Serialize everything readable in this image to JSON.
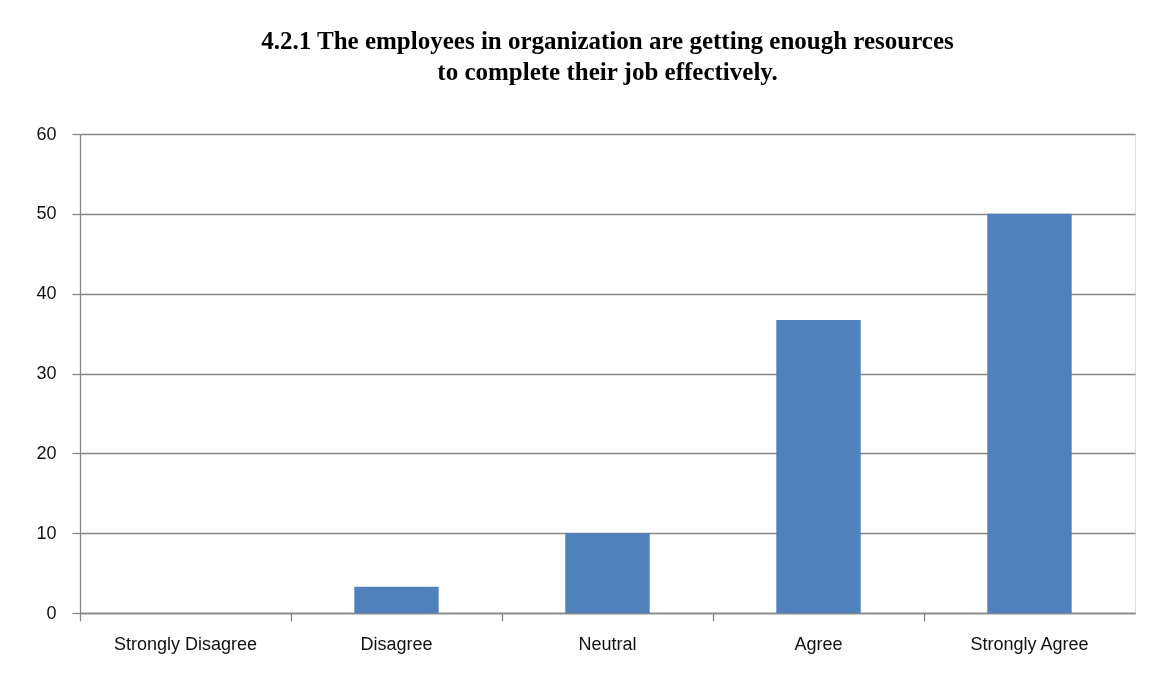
{
  "chart_data": {
    "type": "bar",
    "title": "4.2.1 The employees in organization are getting enough resources\nto complete their job effectively.",
    "categories": [
      "Strongly Disagree",
      "Disagree",
      "Neutral",
      "Agree",
      "Strongly Agree"
    ],
    "values": [
      0,
      3.3,
      10,
      36.7,
      50
    ],
    "color": "#4f81bd",
    "ylim": [
      0,
      60
    ],
    "yticks": [
      0,
      10,
      20,
      30,
      40,
      50,
      60
    ],
    "grid": "y"
  }
}
